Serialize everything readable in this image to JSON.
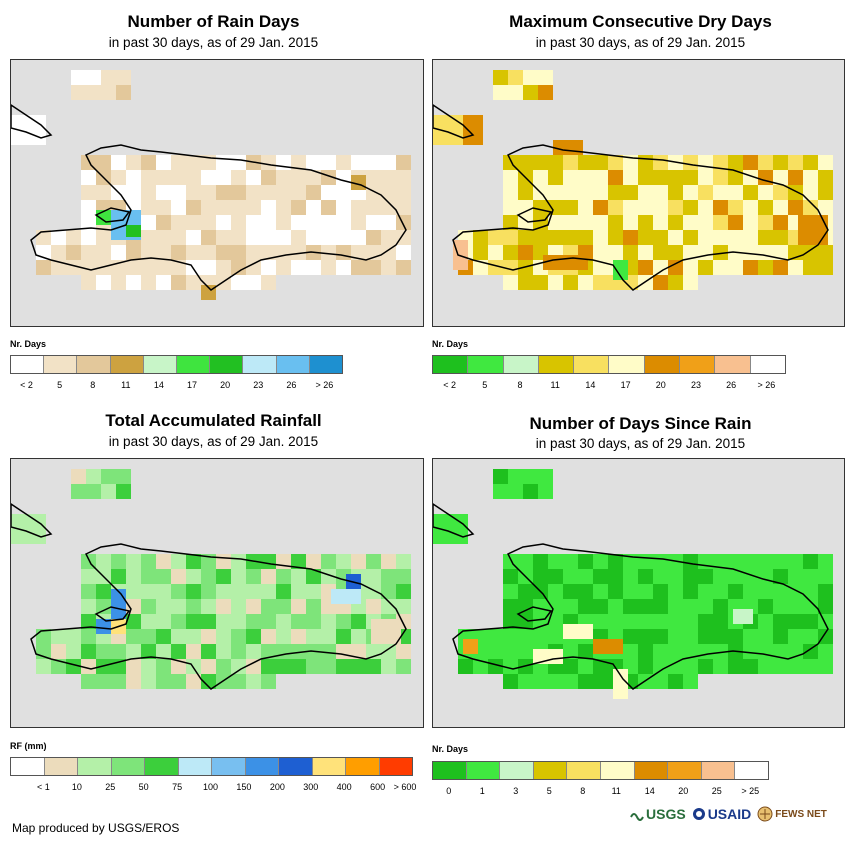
{
  "panels": [
    {
      "id": "rain-days",
      "title": "Number of Rain Days",
      "subtitle": "in past 30 days, as of 29 Jan. 2015",
      "legend_title": "Nr. Days",
      "legend_colors": [
        "#ffffff",
        "#f2e2c6",
        "#e3c89b",
        "#cda240",
        "#c8f5c8",
        "#3fe43f",
        "#22c022",
        "#bde9f7",
        "#69bff0",
        "#1e90d0"
      ],
      "legend_labels": [
        "< 2",
        "5",
        "8",
        "11",
        "14",
        "17",
        "20",
        "23",
        "26",
        "> 26"
      ],
      "label_mode": "center"
    },
    {
      "id": "max-dry-days",
      "title": "Maximum Consecutive Dry Days",
      "subtitle": "in past 30 days, as of 29 Jan. 2015",
      "legend_title": "Nr. Days",
      "legend_colors": [
        "#1ec01e",
        "#40e840",
        "#c8f5c8",
        "#d8c400",
        "#f8e060",
        "#fffcc8",
        "#dc8c00",
        "#f0a018",
        "#f8c090",
        "#ffffff"
      ],
      "legend_labels": [
        "< 2",
        "5",
        "8",
        "11",
        "14",
        "17",
        "20",
        "23",
        "26",
        "> 26"
      ],
      "label_mode": "center"
    },
    {
      "id": "total-rainfall",
      "title": "Total Accumulated Rainfall",
      "subtitle": "in past 30 days, as of 29 Jan. 2015",
      "legend_title": "RF (mm)",
      "legend_colors": [
        "#ffffff",
        "#ecdcbc",
        "#b4f0a8",
        "#7ee47a",
        "#3ccf3c",
        "#bde9f7",
        "#78bff0",
        "#3c91e6",
        "#1e5fd2",
        "#ffe27a",
        "#ff9e00",
        "#ff3c00"
      ],
      "legend_labels": [
        "< 1",
        "10",
        "25",
        "50",
        "75",
        "100",
        "150",
        "200",
        "300",
        "400",
        "600",
        "> 600"
      ],
      "label_mode": "edge"
    },
    {
      "id": "days-since-rain",
      "title": "Number of Days Since Rain",
      "subtitle": "in past 30 days, as of 29 Jan. 2015",
      "legend_title": "Nr. Days",
      "legend_colors": [
        "#1ec01e",
        "#40e840",
        "#c8f5c8",
        "#d8c400",
        "#f8e060",
        "#fffcc8",
        "#dc8c00",
        "#f0a018",
        "#f8c090",
        "#ffffff"
      ],
      "legend_labels": [
        "0",
        "1",
        "3",
        "5",
        "8",
        "11",
        "14",
        "20",
        "25",
        "> 25"
      ],
      "label_mode": "center"
    }
  ],
  "footer": {
    "credit": "Map produced by USGS/EROS"
  },
  "logos": {
    "usgs": "USGS",
    "usaid": "USAID",
    "fewsnet": "FEWS NET"
  }
}
